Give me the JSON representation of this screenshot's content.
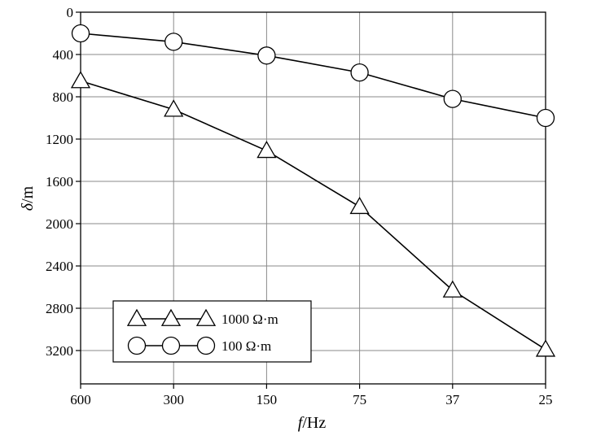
{
  "chart_data": {
    "type": "line",
    "x_categories": [
      "600",
      "300",
      "150",
      "75",
      "37",
      "25"
    ],
    "xlabel_var": "f",
    "xlabel_unit": "/Hz",
    "ylabel_var": "δ",
    "ylabel_unit": "/m",
    "y_ticks": [
      "0",
      "400",
      "800",
      "1200",
      "1600",
      "2000",
      "2400",
      "2800",
      "3200"
    ],
    "ylim": [
      0,
      3500
    ],
    "y_inverted": true,
    "grid": true,
    "legend_position": "lower-left",
    "series": [
      {
        "name": "1000 Ω·m",
        "marker": "triangle",
        "values": [
          650,
          920,
          1310,
          1840,
          2630,
          3190
        ]
      },
      {
        "name": "100 Ω·m",
        "marker": "circle",
        "values": [
          200,
          280,
          410,
          570,
          820,
          1000
        ]
      }
    ]
  }
}
